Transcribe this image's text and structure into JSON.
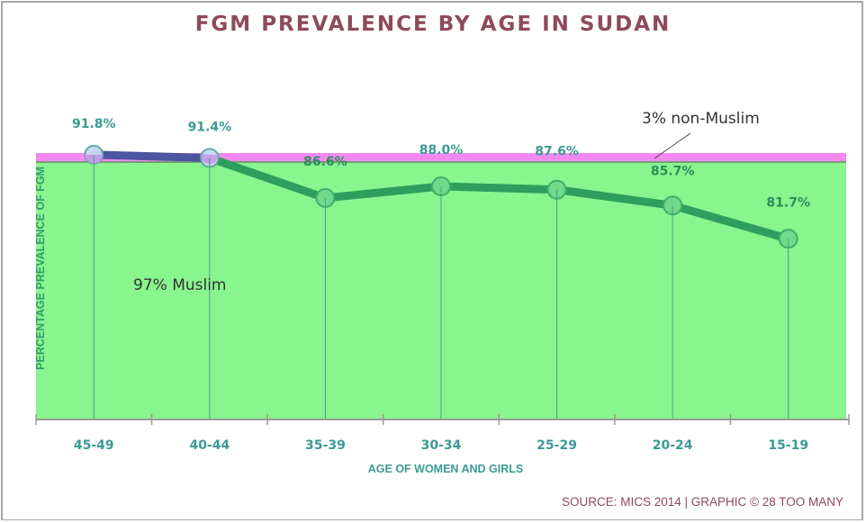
{
  "title": "FGM PREVALENCE BY AGE IN SUDAN",
  "source": "SOURCE: MICS 2014 | GRAPHIC © 28 TOO MANY",
  "colors": {
    "title": "#8e4a5b",
    "muslim_area": "#88f58f",
    "non_muslim_band": "#f389f0",
    "line_main": "#2e9e5e",
    "line_top": "#4c55a0",
    "marker_fill": "#70d98a",
    "marker_top_fill": "#c8d8f2",
    "value_label_main": "#2e8c58",
    "value_label_top": "#3b9a94",
    "axis_text": "#3b9a94"
  },
  "chart_data": {
    "type": "line",
    "title": "FGM PREVALENCE BY AGE IN SUDAN",
    "xlabel": "AGE OF WOMEN AND GIRLS",
    "ylabel": "PERCENTAGE PREVALENCE OF FGM",
    "categories": [
      "45-49",
      "40-44",
      "35-39",
      "30-34",
      "25-29",
      "20-24",
      "15-19"
    ],
    "series": [
      {
        "name": "FGM prevalence",
        "values": [
          91.8,
          91.4,
          86.6,
          88.0,
          87.6,
          85.7,
          81.7
        ],
        "labels": [
          "91.8%",
          "91.4%",
          "86.6%",
          "88.0%",
          "87.6%",
          "85.7%",
          "81.7%"
        ]
      }
    ],
    "ylim": [
      60,
      92
    ],
    "y_tick_labels_shown": false,
    "grid": "vertical",
    "background_bands": [
      {
        "name": "97% Muslim",
        "label": "97% Muslim",
        "share_percent": 97
      },
      {
        "name": "3% non-Muslim",
        "label": "3% non-Muslim",
        "share_percent": 3
      }
    ],
    "source": "SOURCE: MICS 2014 | GRAPHIC © 28 TOO MANY"
  }
}
